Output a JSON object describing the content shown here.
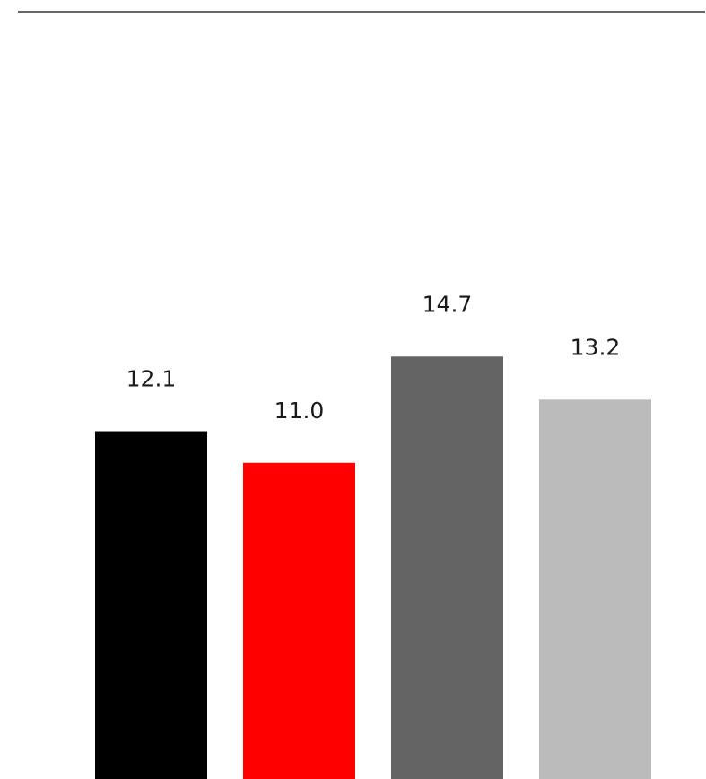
{
  "chart_data": {
    "type": "bar",
    "categories": [
      "",
      "",
      "",
      ""
    ],
    "values": [
      12.1,
      11.0,
      14.7,
      13.2
    ],
    "value_labels": [
      "12.1",
      "11.0",
      "14.7",
      "13.2"
    ],
    "colors": [
      "#000000",
      "#ff0000",
      "#646464",
      "#bbbbbb"
    ],
    "title": "",
    "xlabel": "",
    "ylabel": "",
    "ylim": [
      0,
      26.7
    ],
    "grid": false,
    "legend": "none"
  }
}
